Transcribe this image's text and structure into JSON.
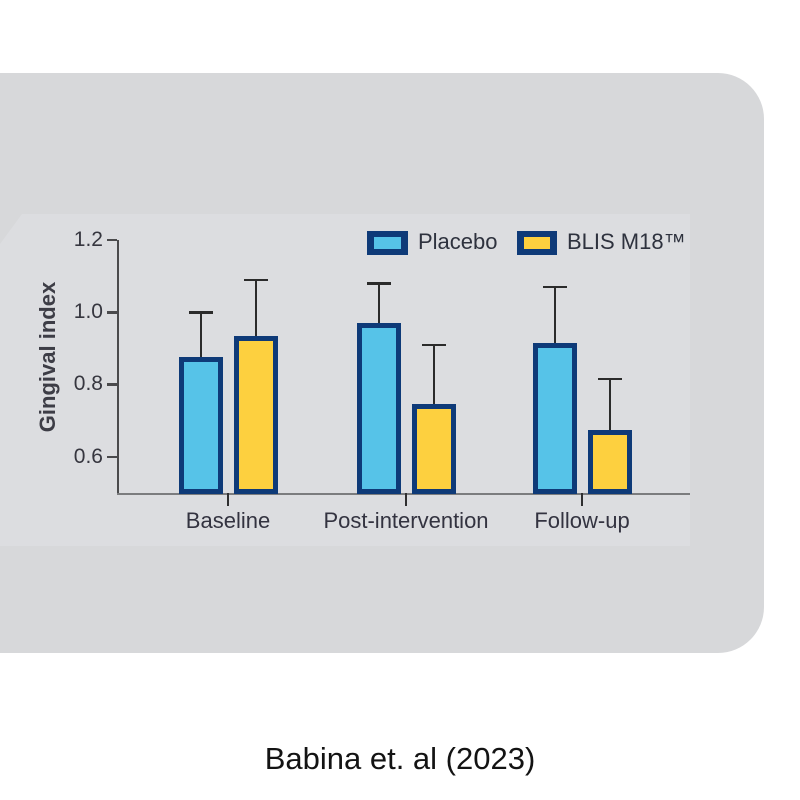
{
  "caption": "Babina et. al (2023)",
  "chart_data": {
    "type": "bar",
    "title": "",
    "xlabel": "",
    "ylabel": "Gingival index",
    "categories": [
      "Baseline",
      "Post-intervention",
      "Follow-up"
    ],
    "series": [
      {
        "name": "Placebo",
        "values": [
          0.875,
          0.97,
          0.915
        ],
        "error_upper": [
          1.0,
          1.08,
          1.07
        ],
        "fill": "#56c3e8"
      },
      {
        "name": "BLIS M18™",
        "values": [
          0.935,
          0.745,
          0.675
        ],
        "error_upper": [
          1.09,
          0.91,
          0.815
        ],
        "fill": "#fdd03f"
      }
    ],
    "yticks": [
      "0.6",
      "0.8",
      "1.0",
      "1.2"
    ],
    "ylim": [
      0.5,
      1.2
    ],
    "grid": "off",
    "legend_position": "top-right",
    "error_bars": "upper-only"
  },
  "colors": {
    "card_bg": "#d7d8da",
    "panel_bg": "#dcdde0",
    "bar_border": "#0e3a78",
    "placebo_fill": "#56c3e8",
    "blis_fill": "#fdd03f",
    "error_bar": "#2b2b2b",
    "y_axis": "#4a4a4c",
    "x_axis": "#7b7c7e",
    "tick_dark": "#2f2f30",
    "text": "#36363f"
  }
}
